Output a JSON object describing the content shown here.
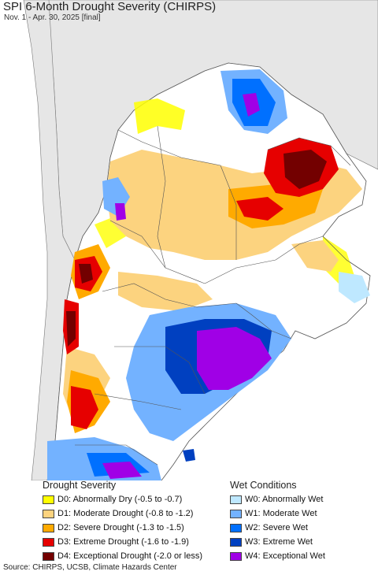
{
  "title": "SPI 6-Month Drought Severity (CHIRPS)",
  "subtitle": "Nov. 1 - Apr. 30, 2025 [final]",
  "legend": {
    "drought_title": "Drought Severity",
    "wet_title": "Wet Conditions",
    "drought_items": [
      {
        "label": "D0: Abnormally Dry (-0.5 to -0.7)",
        "color": "#ffff00"
      },
      {
        "label": "D1: Moderate Drought (-0.8 to -1.2)",
        "color": "#fcd37f"
      },
      {
        "label": "D2: Severe Drought (-1.3 to -1.5)",
        "color": "#ffaa00"
      },
      {
        "label": "D3: Extreme Drought (-1.6 to -1.9)",
        "color": "#e60000"
      },
      {
        "label": "D4: Exceptional Drought (-2.0 or less)",
        "color": "#730000"
      }
    ],
    "wet_items": [
      {
        "label": "W0: Abnormally Wet",
        "color": "#bee8ff"
      },
      {
        "label": "W1: Moderate Wet",
        "color": "#73b2ff"
      },
      {
        "label": "W2: Severe Wet",
        "color": "#0070ff"
      },
      {
        "label": "W3: Extreme Wet",
        "color": "#0040c0"
      },
      {
        "label": "W4: Exceptional Wet",
        "color": "#a000e6"
      }
    ]
  },
  "source": "Source: CHIRPS, UCSB, Climate Hazards Center"
}
